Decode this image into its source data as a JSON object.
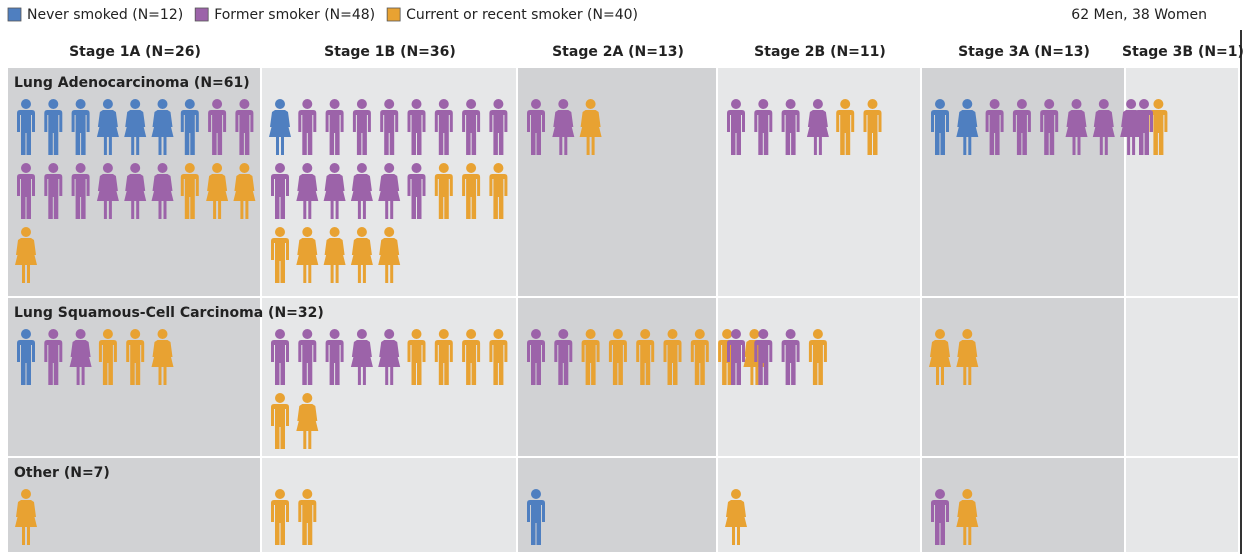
{
  "legend": [
    {
      "label": "Never smoked (N=12)",
      "color": "#4f7fc0"
    },
    {
      "label": "Former smoker (N=48)",
      "color": "#9c63a9"
    },
    {
      "label": "Current or recent smoker (N=40)",
      "color": "#e8a232"
    }
  ],
  "note": "62 Men, 38 Women",
  "stages": [
    "Stage 1A (N=26)",
    "Stage 1B (N=36)",
    "Stage 2A (N=13)",
    "Stage 2B (N=11)",
    "Stage 3A (N=13)",
    "Stage 3B (N=1)"
  ],
  "rows": [
    {
      "label": "Lung Adenocarcinoma (N=61)",
      "cells": [
        [
          [
            0,
            0
          ],
          [
            0,
            0
          ],
          [
            0,
            0
          ],
          [
            0,
            1
          ],
          [
            0,
            1
          ],
          [
            0,
            1
          ],
          [
            0,
            0
          ],
          [
            1,
            0
          ],
          [
            1,
            0
          ],
          [
            1,
            0
          ],
          [
            1,
            0
          ],
          [
            1,
            0
          ],
          [
            1,
            1
          ],
          [
            1,
            1
          ],
          [
            1,
            1
          ],
          [
            2,
            0
          ],
          [
            2,
            1
          ],
          [
            2,
            1
          ],
          [
            2,
            1
          ]
        ],
        [
          [
            0,
            1
          ],
          [
            1,
            0
          ],
          [
            1,
            0
          ],
          [
            1,
            0
          ],
          [
            1,
            0
          ],
          [
            1,
            0
          ],
          [
            1,
            0
          ],
          [
            1,
            0
          ],
          [
            1,
            0
          ],
          [
            1,
            0
          ],
          [
            1,
            1
          ],
          [
            1,
            1
          ],
          [
            1,
            1
          ],
          [
            1,
            1
          ],
          [
            1,
            0
          ],
          [
            2,
            0
          ],
          [
            2,
            0
          ],
          [
            2,
            0
          ],
          [
            2,
            0
          ],
          [
            2,
            1
          ],
          [
            2,
            1
          ],
          [
            2,
            1
          ],
          [
            2,
            1
          ]
        ],
        [
          [
            1,
            0
          ],
          [
            1,
            1
          ],
          [
            2,
            1
          ]
        ],
        [
          [
            1,
            0
          ],
          [
            1,
            0
          ],
          [
            1,
            0
          ],
          [
            1,
            1
          ],
          [
            2,
            0
          ],
          [
            2,
            0
          ]
        ],
        [
          [
            0,
            0
          ],
          [
            0,
            1
          ],
          [
            1,
            0
          ],
          [
            1,
            0
          ],
          [
            1,
            0
          ],
          [
            1,
            1
          ],
          [
            1,
            1
          ],
          [
            1,
            1
          ],
          [
            2,
            0
          ]
        ],
        [
          [
            1,
            0
          ]
        ]
      ]
    },
    {
      "label": "Lung Squamous-Cell Carcinoma (N=32)",
      "cells": [
        [
          [
            0,
            0
          ],
          [
            1,
            0
          ],
          [
            1,
            1
          ],
          [
            2,
            0
          ],
          [
            2,
            0
          ],
          [
            2,
            1
          ]
        ],
        [
          [
            1,
            0
          ],
          [
            1,
            0
          ],
          [
            1,
            0
          ],
          [
            1,
            1
          ],
          [
            1,
            1
          ],
          [
            2,
            0
          ],
          [
            2,
            0
          ],
          [
            2,
            0
          ],
          [
            2,
            0
          ],
          [
            2,
            0
          ],
          [
            2,
            1
          ]
        ],
        [
          [
            1,
            0
          ],
          [
            1,
            0
          ],
          [
            2,
            0
          ],
          [
            2,
            0
          ],
          [
            2,
            0
          ],
          [
            2,
            0
          ],
          [
            2,
            0
          ],
          [
            2,
            0
          ],
          [
            2,
            1
          ]
        ],
        [
          [
            1,
            0
          ],
          [
            1,
            0
          ],
          [
            1,
            0
          ],
          [
            2,
            0
          ]
        ],
        [
          [
            2,
            1
          ],
          [
            2,
            1
          ]
        ],
        []
      ]
    },
    {
      "label": "Other (N=7)",
      "cells": [
        [
          [
            2,
            1
          ]
        ],
        [
          [
            2,
            0
          ],
          [
            2,
            0
          ]
        ],
        [
          [
            0,
            0
          ]
        ],
        [
          [
            2,
            1
          ]
        ],
        [
          [
            1,
            0
          ],
          [
            2,
            1
          ]
        ],
        []
      ]
    }
  ]
}
